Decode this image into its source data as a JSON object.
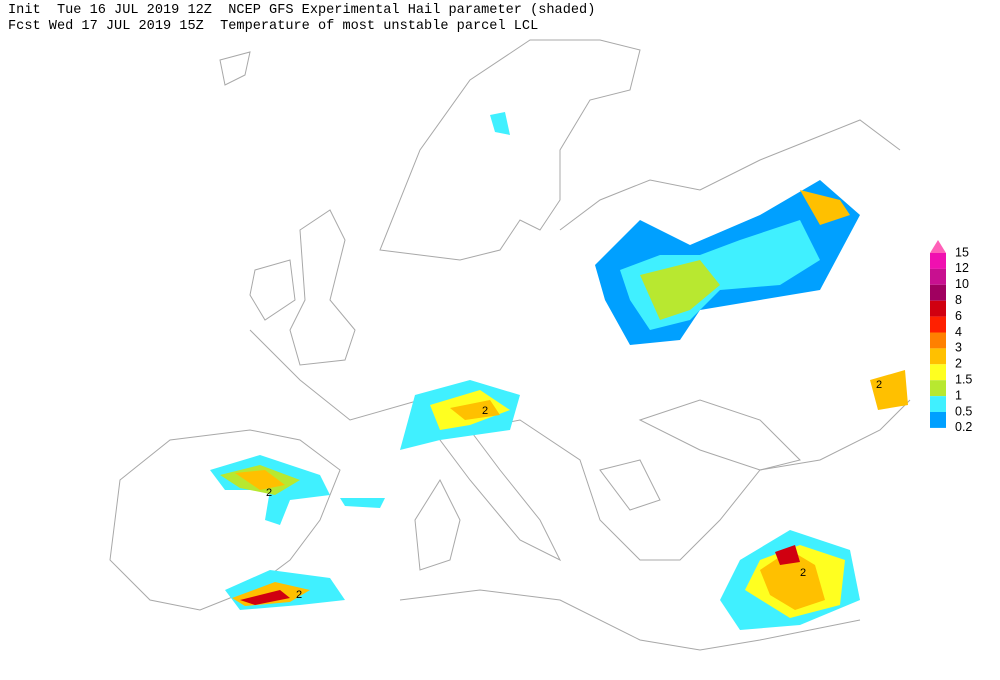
{
  "header": {
    "line1": "Init  Tue 16 JUL 2019 12Z  NCEP GFS Experimental Hail parameter (shaded)",
    "line2": "Fcst Wed 17 JUL 2019 15Z  Temperature of most unstable parcel LCL"
  },
  "legend": {
    "labels": [
      "15",
      "12",
      "10",
      "8",
      "6",
      "4",
      "3",
      "2",
      "1.5",
      "1",
      "0.5",
      "0.2"
    ],
    "colors": [
      "#ff60b8",
      "#f010b0",
      "#c81090",
      "#a00060",
      "#d00010",
      "#ff2000",
      "#ff8000",
      "#ffc000",
      "#ffff20",
      "#b8e830",
      "#40f0ff",
      "#00a0ff"
    ]
  },
  "contour_labels": [
    "2",
    "2",
    "2",
    "2",
    "2"
  ]
}
